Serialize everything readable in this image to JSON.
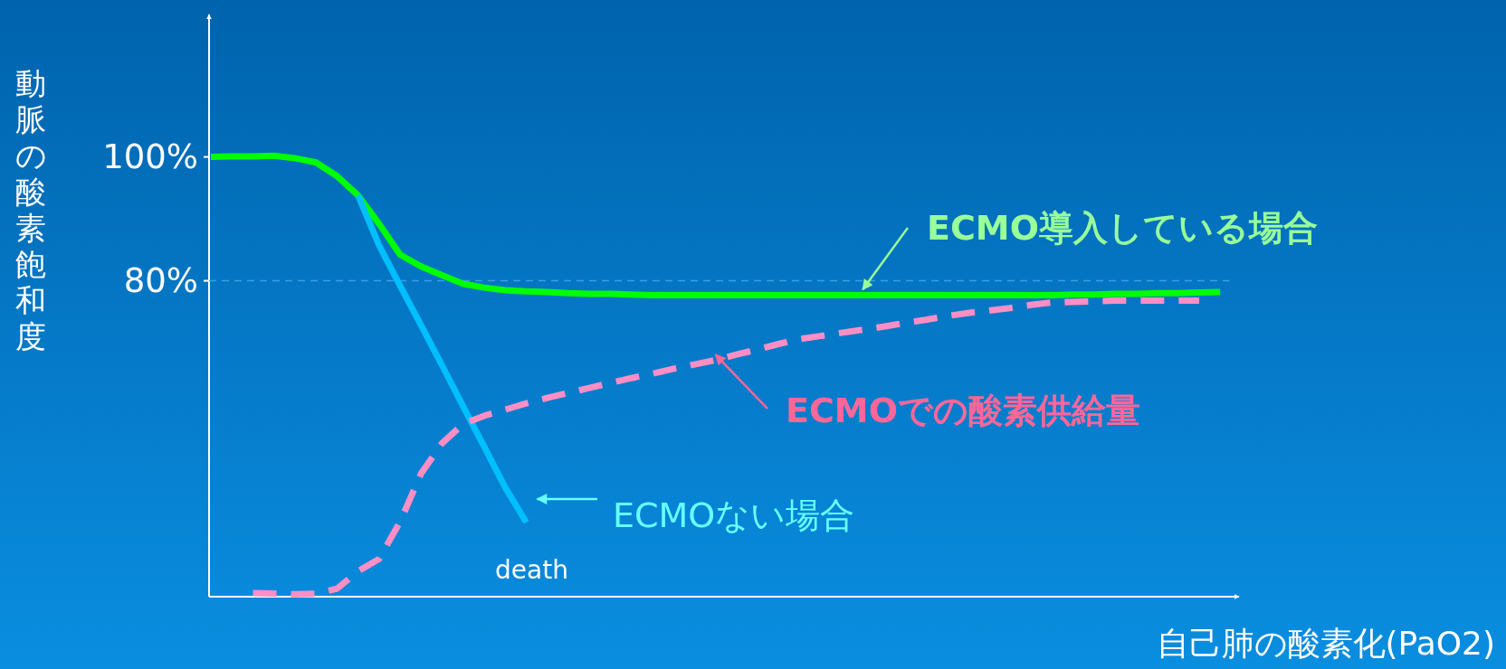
{
  "chart_data": {
    "type": "line",
    "ylabel": "動脈の酸素飽和度",
    "xlabel": "自己肺の酸素化(PaO2)",
    "categories": [
      null,
      null,
      null,
      null,
      null,
      null,
      null,
      null,
      null,
      null,
      null,
      null,
      null,
      null,
      null,
      null,
      null,
      null,
      null,
      null,
      null,
      null,
      null,
      null,
      null,
      null,
      null,
      null,
      null,
      null,
      null,
      null,
      null,
      null,
      null,
      null,
      null,
      null,
      null,
      null,
      null,
      null,
      null,
      null,
      null,
      null,
      null,
      null,
      null
    ],
    "ylim": [
      29,
      123
    ],
    "yticks": [
      {
        "value": 100,
        "label": "100%"
      },
      {
        "value": 80,
        "label": "80%"
      }
    ],
    "grid": false,
    "legend": false,
    "ref_lines": [
      {
        "axis": "y",
        "value": 80,
        "color": "#3a9ee6",
        "line_style": "dashed"
      }
    ],
    "annotations": [
      "death"
    ],
    "series": [
      {
        "name": "ECMO導入している場合",
        "color": "#00ff00",
        "line_style": "solid",
        "values": [
          100,
          100.1,
          100.1,
          100.2,
          99.8,
          99.1,
          96.9,
          93.8,
          89.2,
          84.2,
          82.3,
          80.9,
          79.5,
          78.9,
          78.5,
          78.3,
          78.2,
          78.0,
          77.9,
          77.9,
          77.8,
          77.7,
          77.7,
          77.7,
          77.7,
          77.7,
          77.7,
          77.7,
          77.7,
          77.7,
          77.7,
          77.7,
          77.7,
          77.7,
          77.7,
          77.7,
          77.7,
          77.7,
          77.7,
          77.7,
          77.7,
          77.8,
          77.8,
          77.9,
          77.9,
          78.0,
          78.0,
          78.1,
          78.2
        ]
      },
      {
        "name": "ECMOない場合",
        "color": "#00bfff",
        "line_style": "solid",
        "values": [
          null,
          null,
          null,
          null,
          null,
          null,
          null,
          93.8,
          85.7,
          79.2,
          72.8,
          66.3,
          59.7,
          53.2,
          46.6,
          41,
          null,
          null,
          null,
          null,
          null,
          null,
          null,
          null,
          null,
          null,
          null,
          null,
          null,
          null,
          null,
          null,
          null,
          null,
          null,
          null,
          null,
          null,
          null,
          null,
          null,
          null,
          null,
          null,
          null,
          null,
          null,
          null,
          null
        ]
      },
      {
        "name": "ECMOでの酸素供給量",
        "color": "#ff8ec4",
        "line_style": "dashed",
        "values": [
          null,
          null,
          29.6,
          29.5,
          29.4,
          29.5,
          30.3,
          33.1,
          35.1,
          41.1,
          48.9,
          53.8,
          56.9,
          58.2,
          59.2,
          60.2,
          61.1,
          61.9,
          62.7,
          63.5,
          64.3,
          65.0,
          65.8,
          66.5,
          67.2,
          68.1,
          68.9,
          69.8,
          70.6,
          71.1,
          71.6,
          72.1,
          72.6,
          73.2,
          73.7,
          74.3,
          74.8,
          75.2,
          75.6,
          76.1,
          76.5,
          76.6,
          76.7,
          76.8,
          76.8,
          76.8,
          76.8,
          76.8,
          null
        ]
      }
    ]
  }
}
